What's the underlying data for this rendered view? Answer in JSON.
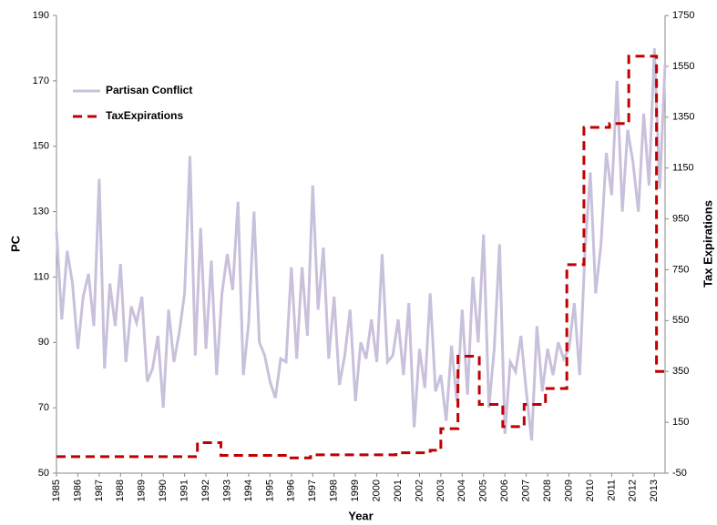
{
  "chart_data": {
    "type": "line",
    "xlabel": "Year",
    "ylabel": "PC",
    "y2label": "Tax Expirations",
    "xlim": [
      1985,
      2013.5
    ],
    "xticks": [
      1985,
      1986,
      1987,
      1988,
      1989,
      1990,
      1991,
      1992,
      1993,
      1994,
      1995,
      1996,
      1997,
      1998,
      1999,
      2000,
      2001,
      2002,
      2003,
      2004,
      2005,
      2006,
      2007,
      2008,
      2009,
      2010,
      2011,
      2012,
      2013
    ],
    "ylim": [
      50,
      190
    ],
    "yticks": [
      50,
      70,
      90,
      110,
      130,
      150,
      170,
      190
    ],
    "y2lim": [
      -50,
      1750
    ],
    "y2ticks": [
      -50,
      150,
      350,
      550,
      750,
      950,
      1150,
      1350,
      1550,
      1750
    ],
    "legend": "upper left",
    "series": [
      {
        "name": "Partisan Conflict",
        "color": "#c9c0dc",
        "dash": false,
        "x": [
          1985,
          1985.25,
          1985.5,
          1985.75,
          1986,
          1986.25,
          1986.5,
          1986.75,
          1987,
          1987.25,
          1987.5,
          1987.75,
          1988,
          1988.25,
          1988.5,
          1988.75,
          1989,
          1989.25,
          1989.5,
          1989.75,
          1990,
          1990.25,
          1990.5,
          1990.75,
          1991,
          1991.25,
          1991.5,
          1991.75,
          1992,
          1992.25,
          1992.5,
          1992.75,
          1993,
          1993.25,
          1993.5,
          1993.75,
          1994,
          1994.25,
          1994.5,
          1994.75,
          1995,
          1995.25,
          1995.5,
          1995.75,
          1996,
          1996.25,
          1996.5,
          1996.75,
          1997,
          1997.25,
          1997.5,
          1997.75,
          1998,
          1998.25,
          1998.5,
          1998.75,
          1999,
          1999.25,
          1999.5,
          1999.75,
          2000,
          2000.25,
          2000.5,
          2000.75,
          2001,
          2001.25,
          2001.5,
          2001.75,
          2002,
          2002.25,
          2002.5,
          2002.75,
          2003,
          2003.25,
          2003.5,
          2003.75,
          2004,
          2004.25,
          2004.5,
          2004.75,
          2005,
          2005.25,
          2005.5,
          2005.75,
          2006,
          2006.25,
          2006.5,
          2006.75,
          2007,
          2007.25,
          2007.5,
          2007.75,
          2008,
          2008.25,
          2008.5,
          2008.75,
          2009,
          2009.25,
          2009.5,
          2009.75,
          2010,
          2010.25,
          2010.5,
          2010.75,
          2011,
          2011.25,
          2011.5,
          2011.75,
          2012,
          2012.25,
          2012.5,
          2012.75,
          2013,
          2013.25,
          2013.5
        ],
        "values": [
          124,
          97,
          118,
          108,
          88,
          104,
          111,
          95,
          140,
          82,
          108,
          95,
          114,
          84,
          101,
          96,
          104,
          78,
          82,
          92,
          70,
          100,
          84,
          93,
          105,
          147,
          86,
          125,
          88,
          115,
          80,
          105,
          117,
          106,
          133,
          80,
          96,
          130,
          90,
          86,
          78,
          73,
          85,
          84,
          113,
          85,
          113,
          92,
          138,
          100,
          119,
          85,
          104,
          77,
          86,
          100,
          72,
          90,
          85,
          97,
          84,
          117,
          84,
          86,
          97,
          80,
          102,
          64,
          88,
          76,
          105,
          75,
          80,
          66,
          89,
          72,
          100,
          74,
          110,
          90,
          123,
          70,
          88,
          120,
          62,
          84,
          81,
          92,
          75,
          60,
          95,
          75,
          88,
          80,
          90,
          85,
          88,
          102,
          80,
          118,
          142,
          105,
          120,
          148,
          135,
          170,
          130,
          155,
          145,
          130,
          160,
          138,
          180,
          137,
          175
        ]
      },
      {
        "name": "TaxExpirations",
        "color": "#c00000",
        "dash": true,
        "axis": "y2",
        "x": [
          1985,
          1991.6,
          1991.6,
          1992.7,
          1992.7,
          1995.9,
          1995.9,
          1996.9,
          1996.9,
          2000.9,
          2000.9,
          2002.5,
          2002.5,
          2003.0,
          2003.0,
          2003.8,
          2003.8,
          2004.8,
          2004.8,
          2005.9,
          2005.9,
          2006.9,
          2006.9,
          2007.9,
          2007.9,
          2008.9,
          2008.9,
          2009.7,
          2009.7,
          2010.9,
          2010.9,
          2011.8,
          2011.8,
          2013.1,
          2013.1,
          2013.5
        ],
        "values": [
          15,
          15,
          70,
          70,
          20,
          20,
          10,
          10,
          22,
          22,
          30,
          30,
          40,
          40,
          125,
          125,
          410,
          410,
          220,
          220,
          133,
          133,
          220,
          220,
          283,
          283,
          770,
          770,
          1310,
          1310,
          1325,
          1325,
          1590,
          1590,
          350,
          350
        ]
      }
    ]
  }
}
